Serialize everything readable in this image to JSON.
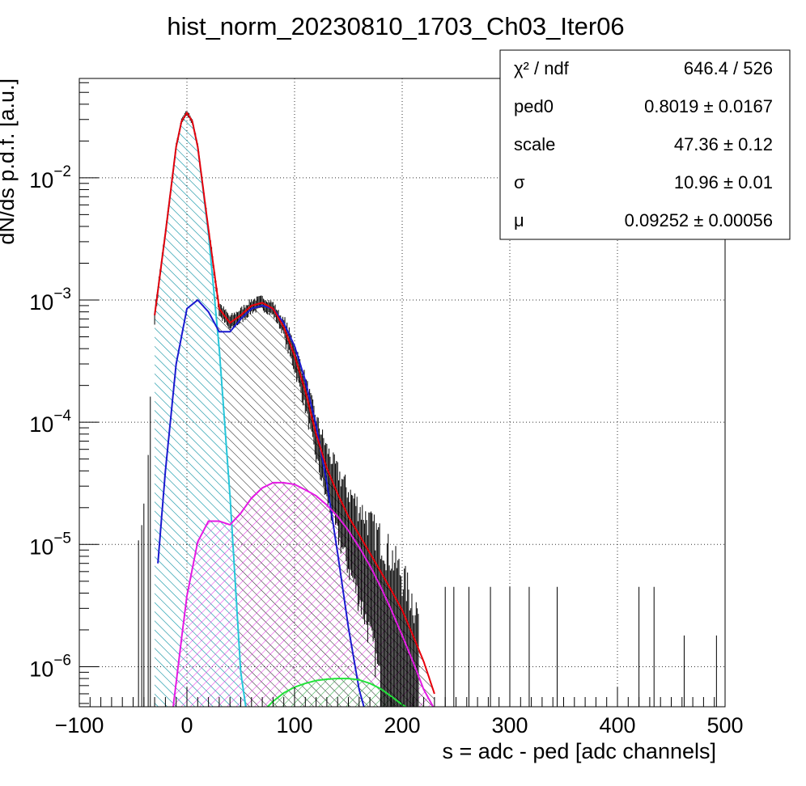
{
  "chart_data": {
    "type": "line",
    "title": "hist_norm_20230810_1703_Ch03_Iter06",
    "xlabel": "s = adc - ped [adc channels]",
    "ylabel": "dN/ds p.d.f. [a.u.]",
    "xlim": [
      -100,
      500
    ],
    "ylim": [
      4.7e-07,
      0.065
    ],
    "yscale": "log",
    "grid": true,
    "legend_position": "top-right",
    "x_ticks": [
      "−100",
      "0",
      "100",
      "200",
      "300",
      "400",
      "500"
    ],
    "y_ticks": [
      {
        "value": 0.01,
        "base": "10",
        "exp": "−2"
      },
      {
        "value": 0.001,
        "base": "10",
        "exp": "−3"
      },
      {
        "value": 0.0001,
        "base": "10",
        "exp": "−4"
      },
      {
        "value": 1e-05,
        "base": "10",
        "exp": "−5"
      },
      {
        "value": 1e-06,
        "base": "10",
        "exp": "−6"
      }
    ],
    "stats": [
      {
        "label": "χ² / ndf",
        "value": "646.4 / 526"
      },
      {
        "label": "ped0",
        "value": "0.8019 ± 0.0167"
      },
      {
        "label": "scale",
        "value": "47.36 ± 0.12"
      },
      {
        "label": "σ",
        "value": "10.96 ± 0.01"
      },
      {
        "label": "μ",
        "value": "0.09252 ± 0.00056"
      }
    ],
    "series": [
      {
        "key": "total",
        "color": "#e8000b",
        "x": [
          -30,
          -20,
          -10,
          -5,
          0,
          5,
          10,
          20,
          30,
          40,
          50,
          60,
          70,
          80,
          90,
          100,
          110,
          120,
          130,
          140,
          150,
          160,
          170,
          180,
          190,
          200,
          210,
          220,
          230
        ],
        "y": [
          0.00075,
          0.0035,
          0.018,
          0.029,
          0.034,
          0.029,
          0.018,
          0.0038,
          0.00085,
          0.00065,
          0.00075,
          0.0009,
          0.00095,
          0.00085,
          0.0006,
          0.00035,
          0.00018,
          8e-05,
          4.2e-05,
          2.6e-05,
          1.7e-05,
          1.2e-05,
          8.5e-06,
          6e-06,
          4.2e-06,
          2.9e-06,
          1.8e-06,
          1.1e-06,
          6e-07
        ]
      },
      {
        "key": "pedestal",
        "color": "#26c6da",
        "x": [
          -30,
          -20,
          -10,
          -5,
          0,
          5,
          10,
          20,
          30,
          40,
          50,
          55
        ],
        "y": [
          0.00075,
          0.0035,
          0.018,
          0.029,
          0.034,
          0.029,
          0.018,
          0.0035,
          0.0004,
          2.5e-05,
          9e-07,
          4.5e-07
        ]
      },
      {
        "key": "one_pe",
        "color": "#1a1ad0",
        "x": [
          -27,
          -20,
          -10,
          0,
          10,
          20,
          30,
          40,
          50,
          60,
          70,
          80,
          90,
          100,
          110,
          120,
          130,
          140,
          150,
          160,
          165
        ],
        "y": [
          7e-06,
          4e-05,
          0.0003,
          0.00085,
          0.001,
          0.0008,
          0.00055,
          0.00055,
          0.0007,
          0.00085,
          0.0009,
          0.00085,
          0.00065,
          0.00042,
          0.00022,
          9.5e-05,
          3.2e-05,
          8.5e-06,
          2.1e-06,
          6.5e-07,
          4.5e-07
        ]
      },
      {
        "key": "two_pe",
        "color": "#e41ae4",
        "x": [
          -13,
          -5,
          0,
          10,
          20,
          30,
          40,
          50,
          60,
          70,
          80,
          90,
          100,
          110,
          120,
          130,
          140,
          150,
          160,
          170,
          180,
          190,
          200,
          210,
          220,
          230
        ],
        "y": [
          4.5e-07,
          1.7e-06,
          3.8e-06,
          1.05e-05,
          1.55e-05,
          1.55e-05,
          1.45e-05,
          1.8e-05,
          2.4e-05,
          2.9e-05,
          3.2e-05,
          3.2e-05,
          3.1e-05,
          2.8e-05,
          2.5e-05,
          2.1e-05,
          1.7e-05,
          1.3e-05,
          9.5e-06,
          6.7e-06,
          4.5e-06,
          2.9e-06,
          1.8e-06,
          1.1e-06,
          6.5e-07,
          4.5e-07
        ]
      },
      {
        "key": "three_pe",
        "color": "#22e43a",
        "x": [
          75,
          80,
          90,
          100,
          110,
          120,
          130,
          140,
          150,
          160,
          170,
          180,
          190,
          200,
          205
        ],
        "y": [
          4.7e-07,
          5.2e-07,
          6.1e-07,
          6.8e-07,
          7.3e-07,
          7.7e-07,
          7.9e-07,
          8e-07,
          8e-07,
          7.8e-07,
          7.3e-07,
          6.6e-07,
          5.7e-07,
          4.9e-07,
          4.6e-07
        ]
      }
    ]
  }
}
